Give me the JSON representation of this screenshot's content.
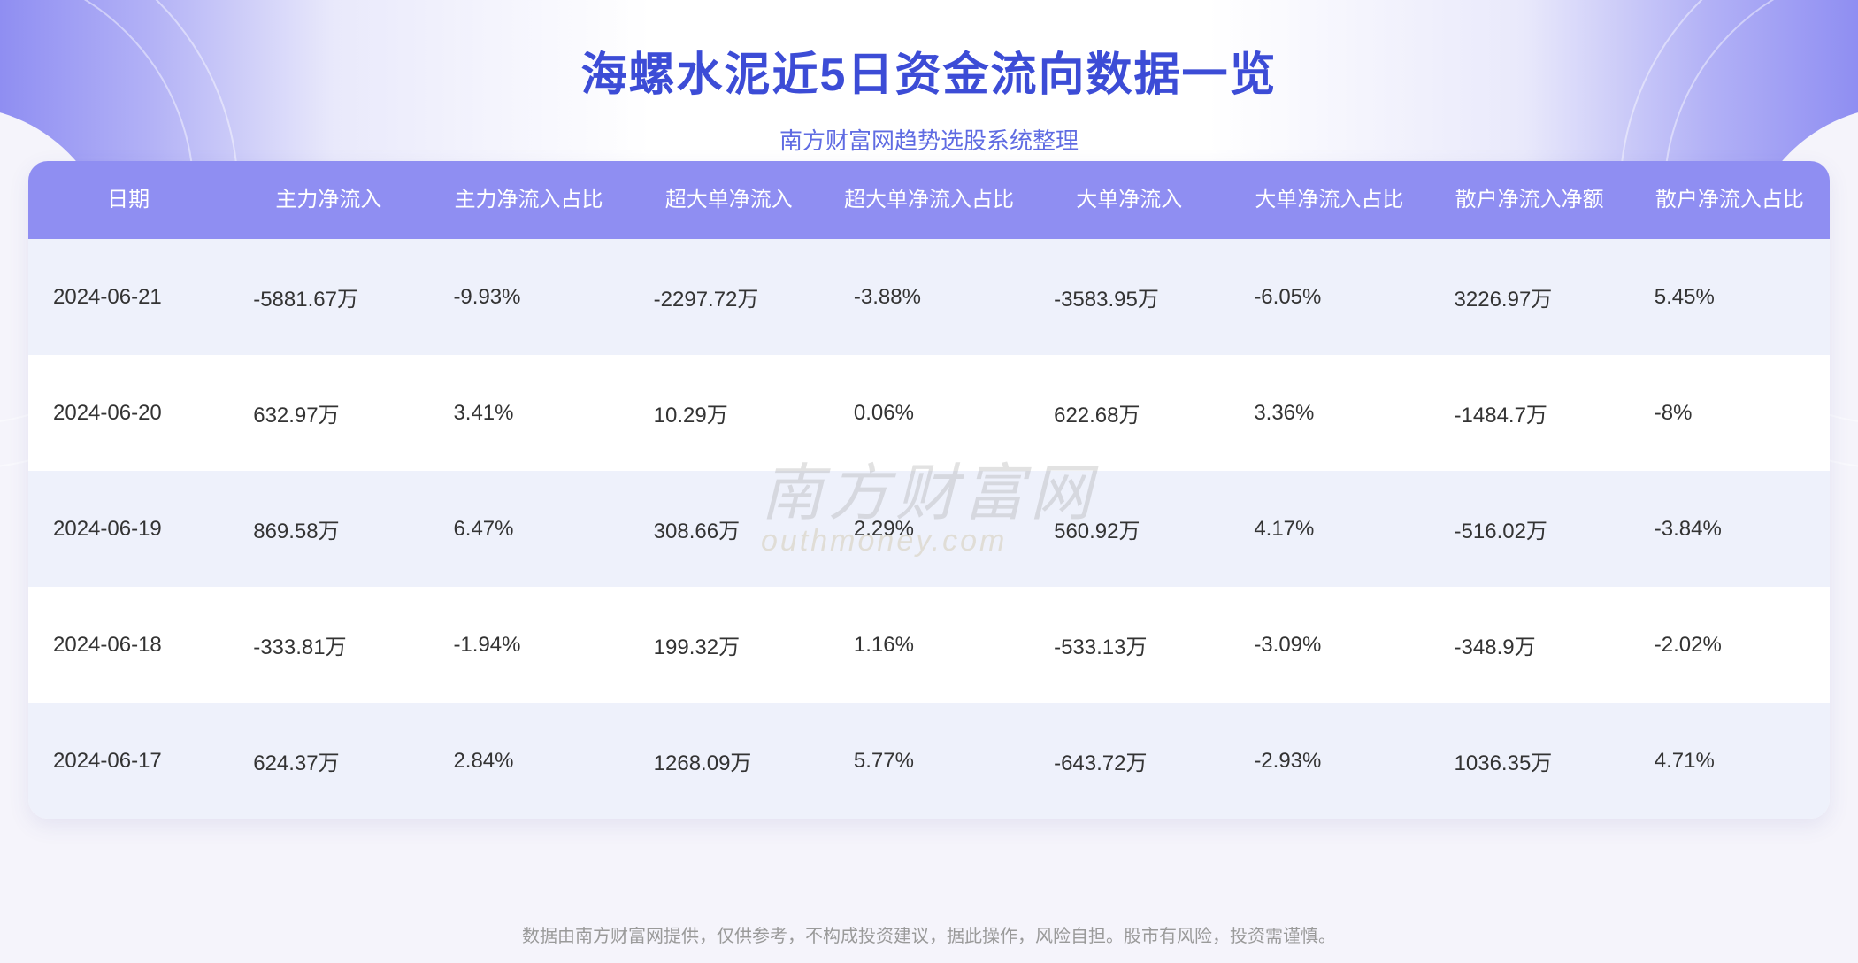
{
  "header": {
    "title": "海螺水泥近5日资金流向数据一览",
    "subtitle": "南方财富网趋势选股系统整理",
    "title_color": "#3c4cd6",
    "subtitle_color": "#5f6be2",
    "title_fontsize": 52,
    "subtitle_fontsize": 26
  },
  "table": {
    "header_bg": "#8f8ef2",
    "header_text_color": "#ffffff",
    "row_odd_bg": "#eef1fb",
    "row_even_bg": "#ffffff",
    "cell_text_color": "#333333",
    "header_fontsize": 24,
    "cell_fontsize": 24,
    "columns": [
      "日期",
      "主力净流入",
      "主力净流入占比",
      "超大单净流入",
      "超大单净流入占比",
      "大单净流入",
      "大单净流入占比",
      "散户净流入净额",
      "散户净流入占比"
    ],
    "rows": [
      [
        "2024-06-21",
        "-5881.67万",
        "-9.93%",
        "-2297.72万",
        "-3.88%",
        "-3583.95万",
        "-6.05%",
        "3226.97万",
        "5.45%"
      ],
      [
        "2024-06-20",
        "632.97万",
        "3.41%",
        "10.29万",
        "0.06%",
        "622.68万",
        "3.36%",
        "-1484.7万",
        "-8%"
      ],
      [
        "2024-06-19",
        "869.58万",
        "6.47%",
        "308.66万",
        "2.29%",
        "560.92万",
        "4.17%",
        "-516.02万",
        "-3.84%"
      ],
      [
        "2024-06-18",
        "-333.81万",
        "-1.94%",
        "199.32万",
        "1.16%",
        "-533.13万",
        "-3.09%",
        "-348.9万",
        "-2.02%"
      ],
      [
        "2024-06-17",
        "624.37万",
        "2.84%",
        "1268.09万",
        "5.77%",
        "-643.72万",
        "-2.93%",
        "1036.35万",
        "4.71%"
      ]
    ]
  },
  "watermark": {
    "line1": "南方财富网",
    "line2": "outhmoney.com",
    "color": "#999999",
    "opacity": 0.28
  },
  "footer": {
    "text": "数据由南方财富网提供，仅供参考，不构成投资建议，据此操作，风险自担。股市有风险，投资需谨慎。",
    "color": "#9a9a9a",
    "fontsize": 20
  },
  "layout": {
    "page_bg": "#f5f4fb",
    "card_bg": "#ffffff",
    "card_radius": 22,
    "banner_gradient": [
      "#8f8ef2",
      "#b2b1f6",
      "#e9e9fb",
      "#ffffff",
      "#ffffff",
      "#e9e9fb",
      "#b2b1f6",
      "#8f8ef2"
    ]
  }
}
